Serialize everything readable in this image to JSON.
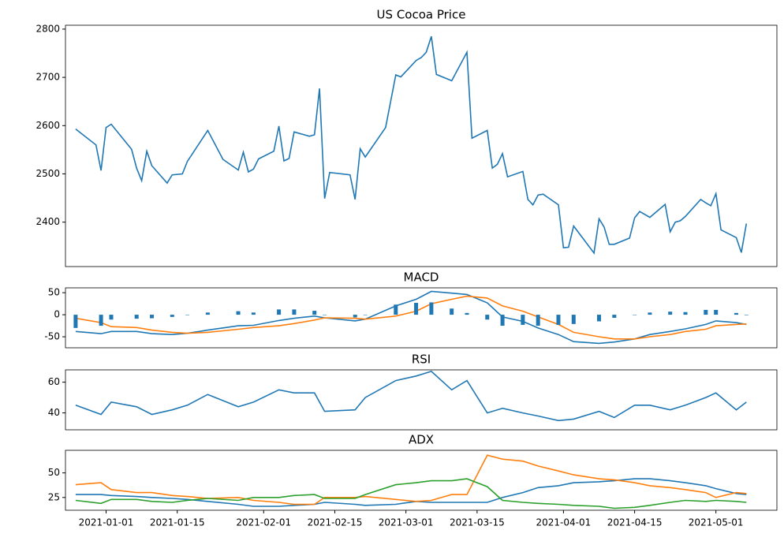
{
  "chart_data": [
    {
      "type": "line",
      "title": "US Cocoa Price",
      "x": [
        "2020-12-26",
        "2020-12-30",
        "2020-12-31",
        "2021-01-01",
        "2021-01-02",
        "2021-01-06",
        "2021-01-07",
        "2021-01-08",
        "2021-01-09",
        "2021-01-10",
        "2021-01-13",
        "2021-01-14",
        "2021-01-16",
        "2021-01-17",
        "2021-01-21",
        "2021-01-24",
        "2021-01-27",
        "2021-01-28",
        "2021-01-29",
        "2021-01-30",
        "2021-01-31",
        "2021-02-03",
        "2021-02-04",
        "2021-02-05",
        "2021-02-06",
        "2021-02-07",
        "2021-02-10",
        "2021-02-11",
        "2021-02-12",
        "2021-02-13",
        "2021-02-14",
        "2021-02-18",
        "2021-02-19",
        "2021-02-20",
        "2021-02-21",
        "2021-02-25",
        "2021-02-27",
        "2021-02-28",
        "2021-03-03",
        "2021-03-04",
        "2021-03-05",
        "2021-03-06",
        "2021-03-07",
        "2021-03-10",
        "2021-03-13",
        "2021-03-14",
        "2021-03-17",
        "2021-03-18",
        "2021-03-19",
        "2021-03-20",
        "2021-03-21",
        "2021-03-24",
        "2021-03-25",
        "2021-03-26",
        "2021-03-27",
        "2021-03-28",
        "2021-03-31",
        "2021-04-01",
        "2021-04-02",
        "2021-04-03",
        "2021-04-07",
        "2021-04-08",
        "2021-04-09",
        "2021-04-10",
        "2021-04-11",
        "2021-04-14",
        "2021-04-15",
        "2021-04-16",
        "2021-04-18",
        "2021-04-21",
        "2021-04-22",
        "2021-04-23",
        "2021-04-24",
        "2021-04-25",
        "2021-04-28",
        "2021-04-29",
        "2021-04-30",
        "2021-05-01",
        "2021-05-02",
        "2021-05-05",
        "2021-05-06",
        "2021-05-07"
      ],
      "series": [
        {
          "color": "#1f77b4",
          "values": [
            2593,
            2560,
            2507,
            2596,
            2603,
            2551,
            2512,
            2486,
            2547,
            2517,
            2481,
            2498,
            2500,
            2526,
            2590,
            2530,
            2508,
            2545,
            2504,
            2510,
            2531,
            2547,
            2599,
            2527,
            2532,
            2587,
            2578,
            2581,
            2677,
            2449,
            2503,
            2498,
            2447,
            2552,
            2535,
            2596,
            2705,
            2701,
            2735,
            2741,
            2752,
            2785,
            2706,
            2693,
            2752,
            2574,
            2590,
            2512,
            2520,
            2542,
            2494,
            2505,
            2447,
            2436,
            2456,
            2458,
            2436,
            2347,
            2348,
            2392,
            2336,
            2407,
            2390,
            2354,
            2354,
            2367,
            2409,
            2422,
            2410,
            2437,
            2380,
            2400,
            2403,
            2412,
            2447,
            2440,
            2434,
            2459,
            2384,
            2368,
            2337,
            2397
          ]
        }
      ],
      "xlim": [
        "2020-12-24",
        "2021-05-13"
      ],
      "ylim": [
        2308,
        2808
      ],
      "yticks": [
        2400,
        2500,
        2600,
        2700,
        2800
      ]
    },
    {
      "type": "macd",
      "title": "MACD",
      "x": [
        "2020-12-26",
        "2020-12-31",
        "2021-01-02",
        "2021-01-07",
        "2021-01-10",
        "2021-01-14",
        "2021-01-17",
        "2021-01-21",
        "2021-01-27",
        "2021-01-30",
        "2021-02-04",
        "2021-02-07",
        "2021-02-11",
        "2021-02-13",
        "2021-02-19",
        "2021-02-21",
        "2021-02-27",
        "2021-03-03",
        "2021-03-06",
        "2021-03-10",
        "2021-03-13",
        "2021-03-17",
        "2021-03-20",
        "2021-03-24",
        "2021-03-27",
        "2021-03-31",
        "2021-04-03",
        "2021-04-08",
        "2021-04-11",
        "2021-04-15",
        "2021-04-18",
        "2021-04-22",
        "2021-04-25",
        "2021-04-29",
        "2021-05-01",
        "2021-05-05",
        "2021-05-07"
      ],
      "series": [
        {
          "color": "#1f77b4",
          "values": [
            -38,
            -43,
            -38,
            -38,
            -43,
            -45,
            -42,
            -35,
            -25,
            -24,
            -13,
            -8,
            -3,
            -7,
            -14,
            -10,
            20,
            35,
            53,
            49,
            46,
            27,
            -5,
            -15,
            -30,
            -45,
            -61,
            -65,
            -62,
            -55,
            -45,
            -38,
            -32,
            -22,
            -14,
            -18,
            -22
          ]
        },
        {
          "color": "#ff7f0e",
          "values": [
            -8,
            -18,
            -27,
            -29,
            -35,
            -40,
            -42,
            -40,
            -33,
            -29,
            -25,
            -20,
            -12,
            -7,
            -8,
            -10,
            -3,
            8,
            25,
            35,
            42,
            38,
            20,
            8,
            -5,
            -22,
            -40,
            -50,
            -55,
            -55,
            -50,
            -45,
            -38,
            -33,
            -25,
            -22,
            -21
          ]
        },
        {
          "color": "#1f77b4",
          "bars": true,
          "values": [
            -30,
            -25,
            -11,
            -9,
            -8,
            -5,
            0,
            5,
            8,
            5,
            12,
            12,
            9,
            0,
            -6,
            0,
            23,
            27,
            28,
            14,
            4,
            -11,
            -25,
            -23,
            -25,
            -23,
            -21,
            -15,
            -7,
            0,
            5,
            7,
            6,
            11,
            11,
            4,
            -1
          ]
        }
      ],
      "xlim": [
        "2020-12-24",
        "2021-05-13"
      ],
      "ylim": [
        -75,
        61
      ],
      "yticks": [
        -50,
        0,
        50
      ]
    },
    {
      "type": "line",
      "title": "RSI",
      "x": [
        "2020-12-26",
        "2020-12-31",
        "2021-01-02",
        "2021-01-07",
        "2021-01-10",
        "2021-01-14",
        "2021-01-17",
        "2021-01-21",
        "2021-01-27",
        "2021-01-30",
        "2021-02-04",
        "2021-02-07",
        "2021-02-11",
        "2021-02-13",
        "2021-02-19",
        "2021-02-21",
        "2021-02-27",
        "2021-03-03",
        "2021-03-06",
        "2021-03-10",
        "2021-03-13",
        "2021-03-17",
        "2021-03-20",
        "2021-03-24",
        "2021-03-27",
        "2021-03-31",
        "2021-04-03",
        "2021-04-08",
        "2021-04-11",
        "2021-04-15",
        "2021-04-18",
        "2021-04-22",
        "2021-04-25",
        "2021-04-29",
        "2021-05-01",
        "2021-05-05",
        "2021-05-07"
      ],
      "series": [
        {
          "color": "#1f77b4",
          "values": [
            45,
            39,
            47,
            44,
            39,
            42,
            45,
            52,
            44,
            47,
            55,
            53,
            53,
            41,
            42,
            50,
            61,
            64,
            67,
            55,
            61,
            40,
            43,
            40,
            38,
            35,
            36,
            41,
            37,
            45,
            45,
            42,
            45,
            50,
            53,
            42,
            47
          ]
        }
      ],
      "xlim": [
        "2020-12-24",
        "2021-05-13"
      ],
      "ylim": [
        29,
        68
      ],
      "yticks": [
        40,
        60
      ]
    },
    {
      "type": "line",
      "title": "ADX",
      "x": [
        "2020-12-26",
        "2020-12-31",
        "2021-01-02",
        "2021-01-07",
        "2021-01-10",
        "2021-01-14",
        "2021-01-17",
        "2021-01-21",
        "2021-01-27",
        "2021-01-30",
        "2021-02-04",
        "2021-02-07",
        "2021-02-11",
        "2021-02-13",
        "2021-02-19",
        "2021-02-21",
        "2021-02-27",
        "2021-03-03",
        "2021-03-06",
        "2021-03-10",
        "2021-03-13",
        "2021-03-17",
        "2021-03-20",
        "2021-03-24",
        "2021-03-27",
        "2021-03-31",
        "2021-04-03",
        "2021-04-08",
        "2021-04-11",
        "2021-04-15",
        "2021-04-18",
        "2021-04-22",
        "2021-04-25",
        "2021-04-29",
        "2021-05-01",
        "2021-05-05",
        "2021-05-07"
      ],
      "series": [
        {
          "color": "#1f77b4",
          "values": [
            28,
            28,
            27,
            26,
            25,
            24,
            23,
            21,
            18,
            16,
            16,
            17,
            18,
            20,
            18,
            17,
            18,
            21,
            20,
            20,
            20,
            20,
            25,
            30,
            35,
            37,
            40,
            41,
            42,
            44,
            44,
            42,
            40,
            37,
            34,
            29,
            28
          ]
        },
        {
          "color": "#ff7f0e",
          "values": [
            38,
            40,
            33,
            30,
            30,
            27,
            26,
            24,
            25,
            22,
            20,
            18,
            18,
            25,
            25,
            26,
            23,
            21,
            22,
            28,
            28,
            68,
            64,
            62,
            57,
            52,
            48,
            44,
            43,
            40,
            37,
            35,
            33,
            30,
            25,
            30,
            29
          ]
        },
        {
          "color": "#2ca02c",
          "values": [
            22,
            19,
            23,
            23,
            21,
            20,
            22,
            24,
            22,
            25,
            25,
            27,
            28,
            24,
            24,
            28,
            38,
            40,
            42,
            42,
            44,
            36,
            22,
            20,
            19,
            18,
            17,
            16,
            14,
            15,
            17,
            20,
            22,
            21,
            22,
            21,
            20
          ]
        }
      ],
      "xlim": [
        "2020-12-24",
        "2021-05-13"
      ],
      "ylim": [
        12,
        73
      ],
      "yticks": [
        25,
        50
      ],
      "xticks": [
        "2021-01-01",
        "2021-01-15",
        "2021-02-01",
        "2021-02-15",
        "2021-03-01",
        "2021-03-15",
        "2021-04-01",
        "2021-04-15",
        "2021-05-01"
      ]
    }
  ]
}
